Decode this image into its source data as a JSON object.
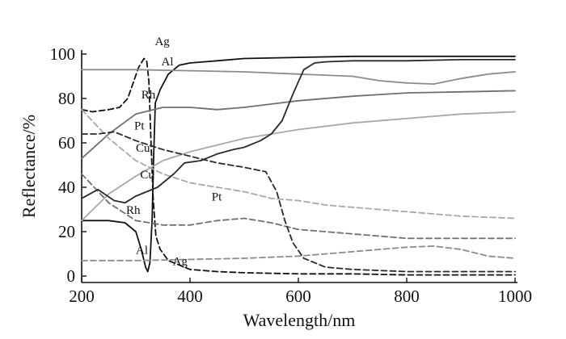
{
  "chart_data": {
    "type": "line",
    "title": "",
    "xlabel": "Wavelength/nm",
    "ylabel": "Reflectance/%",
    "xlim": [
      200,
      1000
    ],
    "ylim": [
      0,
      100
    ],
    "xticks": [
      200,
      400,
      600,
      800,
      1000
    ],
    "yticks": [
      0,
      20,
      40,
      60,
      80,
      100
    ],
    "grid": false,
    "legend": "inline labels",
    "series": [
      {
        "name": "Ag",
        "style": "solid",
        "color": "#111111",
        "label_at": [
          335,
          104
        ],
        "points": [
          [
            200,
            25
          ],
          [
            250,
            25
          ],
          [
            280,
            24
          ],
          [
            300,
            20
          ],
          [
            310,
            12
          ],
          [
            318,
            4
          ],
          [
            322,
            2
          ],
          [
            326,
            6
          ],
          [
            330,
            25
          ],
          [
            333,
            55
          ],
          [
            336,
            78
          ],
          [
            345,
            84
          ],
          [
            360,
            91
          ],
          [
            380,
            95
          ],
          [
            400,
            96
          ],
          [
            450,
            97
          ],
          [
            500,
            98
          ],
          [
            600,
            98.5
          ],
          [
            700,
            99
          ],
          [
            800,
            99
          ],
          [
            900,
            99
          ],
          [
            1000,
            99
          ]
        ]
      },
      {
        "name": "Ag",
        "style": "dashed",
        "color": "#111111",
        "label_at": [
          368,
          5
        ],
        "points": [
          [
            200,
            75
          ],
          [
            220,
            74
          ],
          [
            250,
            75
          ],
          [
            270,
            76
          ],
          [
            285,
            80
          ],
          [
            295,
            87
          ],
          [
            305,
            94
          ],
          [
            315,
            98
          ],
          [
            320,
            97
          ],
          [
            324,
            88
          ],
          [
            328,
            60
          ],
          [
            332,
            35
          ],
          [
            337,
            18
          ],
          [
            345,
            12
          ],
          [
            360,
            7
          ],
          [
            380,
            5
          ],
          [
            400,
            3
          ],
          [
            450,
            2
          ],
          [
            500,
            1.5
          ],
          [
            600,
            1
          ],
          [
            700,
            1
          ],
          [
            800,
            0.5
          ],
          [
            1000,
            0.5
          ]
        ]
      },
      {
        "name": "Al",
        "style": "solid",
        "color": "#8c8c8c",
        "label_at": [
          347,
          95
        ],
        "points": [
          [
            200,
            93
          ],
          [
            250,
            93
          ],
          [
            300,
            93
          ],
          [
            400,
            92.5
          ],
          [
            500,
            92
          ],
          [
            600,
            91
          ],
          [
            700,
            90
          ],
          [
            750,
            88
          ],
          [
            800,
            87
          ],
          [
            850,
            86.5
          ],
          [
            900,
            89
          ],
          [
            950,
            91
          ],
          [
            1000,
            92
          ]
        ]
      },
      {
        "name": "Al",
        "style": "dashed",
        "color": "#8c8c8c",
        "label_at": [
          300,
          10
        ],
        "points": [
          [
            200,
            7
          ],
          [
            300,
            7
          ],
          [
            400,
            7.5
          ],
          [
            500,
            8
          ],
          [
            600,
            9
          ],
          [
            700,
            11
          ],
          [
            750,
            12
          ],
          [
            800,
            13
          ],
          [
            850,
            13.5
          ],
          [
            900,
            12
          ],
          [
            950,
            9
          ],
          [
            1000,
            8
          ]
        ]
      },
      {
        "name": "Rh",
        "style": "solid",
        "color": "#707070",
        "label_at": [
          310,
          80
        ],
        "points": [
          [
            200,
            53
          ],
          [
            250,
            64
          ],
          [
            300,
            73
          ],
          [
            350,
            76
          ],
          [
            400,
            76
          ],
          [
            450,
            75
          ],
          [
            500,
            76
          ],
          [
            600,
            79
          ],
          [
            700,
            81
          ],
          [
            800,
            82.5
          ],
          [
            900,
            83
          ],
          [
            1000,
            83.5
          ]
        ]
      },
      {
        "name": "Rh",
        "style": "dashed",
        "color": "#707070",
        "label_at": [
          282,
          28
        ],
        "points": [
          [
            200,
            46
          ],
          [
            250,
            33
          ],
          [
            300,
            25
          ],
          [
            350,
            23
          ],
          [
            400,
            23
          ],
          [
            450,
            25
          ],
          [
            500,
            26
          ],
          [
            550,
            24
          ],
          [
            600,
            21
          ],
          [
            700,
            19
          ],
          [
            800,
            17
          ],
          [
            900,
            17
          ],
          [
            1000,
            17
          ]
        ]
      },
      {
        "name": "Pt",
        "style": "solid",
        "color": "#a8a8a8",
        "label_at": [
          297,
          66
        ],
        "points": [
          [
            200,
            25
          ],
          [
            250,
            37
          ],
          [
            300,
            45
          ],
          [
            350,
            52
          ],
          [
            400,
            56
          ],
          [
            450,
            59
          ],
          [
            500,
            62
          ],
          [
            550,
            64
          ],
          [
            600,
            66
          ],
          [
            700,
            69
          ],
          [
            800,
            71
          ],
          [
            900,
            73
          ],
          [
            1000,
            74
          ]
        ]
      },
      {
        "name": "Pt",
        "style": "dashed",
        "color": "#a8a8a8",
        "label_at": [
          440,
          34
        ],
        "points": [
          [
            200,
            75
          ],
          [
            250,
            62
          ],
          [
            300,
            52
          ],
          [
            350,
            46
          ],
          [
            400,
            42
          ],
          [
            450,
            40
          ],
          [
            500,
            38
          ],
          [
            550,
            35
          ],
          [
            600,
            34
          ],
          [
            650,
            32
          ],
          [
            700,
            31
          ],
          [
            800,
            29
          ],
          [
            900,
            27
          ],
          [
            1000,
            26
          ]
        ]
      },
      {
        "name": "Cu",
        "style": "solid",
        "color": "#2a2a2a",
        "label_at": [
          300,
          56
        ],
        "points": [
          [
            200,
            35
          ],
          [
            230,
            39
          ],
          [
            260,
            34
          ],
          [
            280,
            33
          ],
          [
            300,
            36
          ],
          [
            340,
            40
          ],
          [
            370,
            46
          ],
          [
            390,
            51
          ],
          [
            420,
            52
          ],
          [
            450,
            55
          ],
          [
            480,
            57
          ],
          [
            500,
            58
          ],
          [
            530,
            61
          ],
          [
            550,
            64
          ],
          [
            570,
            70
          ],
          [
            590,
            82
          ],
          [
            610,
            93
          ],
          [
            630,
            96
          ],
          [
            650,
            96.5
          ],
          [
            700,
            97
          ],
          [
            800,
            97
          ],
          [
            900,
            97.5
          ],
          [
            1000,
            97.5
          ]
        ]
      },
      {
        "name": "Cu",
        "style": "dashed",
        "color": "#2a2a2a",
        "label_at": [
          308,
          44
        ],
        "points": [
          [
            200,
            64
          ],
          [
            230,
            64
          ],
          [
            260,
            65
          ],
          [
            300,
            61
          ],
          [
            350,
            57
          ],
          [
            400,
            54
          ],
          [
            450,
            51
          ],
          [
            500,
            49
          ],
          [
            540,
            47
          ],
          [
            560,
            38
          ],
          [
            575,
            25
          ],
          [
            590,
            15
          ],
          [
            610,
            8
          ],
          [
            650,
            4
          ],
          [
            700,
            3
          ],
          [
            800,
            2
          ],
          [
            900,
            2
          ],
          [
            1000,
            2
          ]
        ]
      }
    ]
  }
}
